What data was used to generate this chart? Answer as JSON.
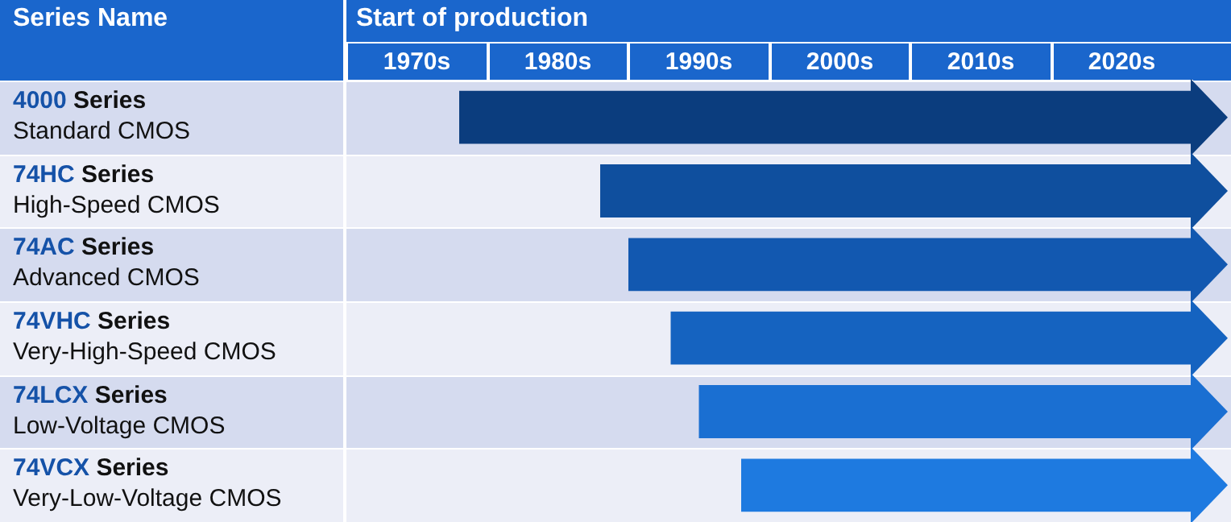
{
  "chart_data": {
    "type": "bar",
    "orientation": "horizontal",
    "ylabel": "Series Name",
    "xlabel": "Start of production",
    "categories": [
      "4000 Series\nStandard CMOS",
      "74HC Series\nHigh-Speed CMOS",
      "74AC Series\nAdvanced CMOS",
      "74VHC Series\nVery-High-Speed CMOS",
      "74LCX Series\nLow-Voltage CMOS",
      "74VCX Series\nVery-Low-Voltage CMOS"
    ],
    "base": [
      1973,
      1983,
      1985,
      1988,
      1990,
      1993
    ],
    "values": [
      52,
      42,
      40,
      37,
      35,
      32
    ],
    "colors": [
      "#0b3d7e",
      "#0f4f9e",
      "#1258b0",
      "#1563c0",
      "#1a6fd2",
      "#1e7ae0"
    ],
    "xlim": [
      1965,
      2025
    ],
    "xticks": [
      {
        "value": 1970,
        "label": "1970s"
      },
      {
        "value": 1980,
        "label": "1980s"
      },
      {
        "value": 1990,
        "label": "1990s"
      },
      {
        "value": 2000,
        "label": "2000s"
      },
      {
        "value": 2010,
        "label": "2010s"
      },
      {
        "value": 2020,
        "label": "2020s"
      }
    ]
  }
}
